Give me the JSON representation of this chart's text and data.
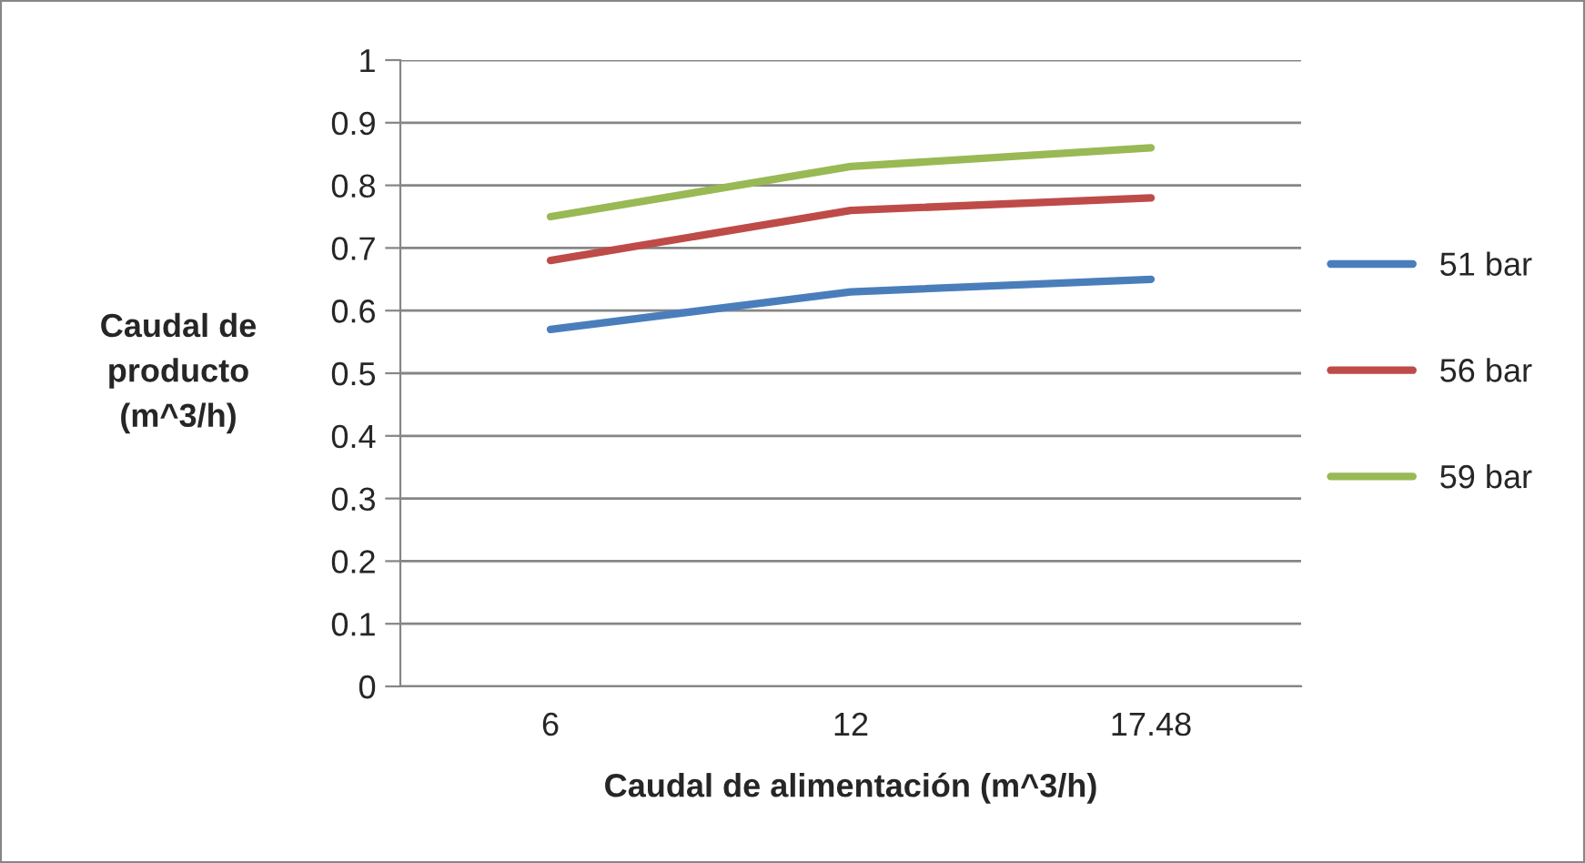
{
  "chart_data": {
    "type": "line",
    "xlabel": "Caudal de alimentación (m^3/h)",
    "ylabel": "Caudal de\nproducto\n(m^3/h)",
    "categories": [
      "6",
      "12",
      "17.48"
    ],
    "series": [
      {
        "name": "51 bar",
        "color": "#4a7ebb",
        "values": [
          0.57,
          0.63,
          0.65
        ]
      },
      {
        "name": "56 bar",
        "color": "#be4b48",
        "values": [
          0.68,
          0.76,
          0.78
        ]
      },
      {
        "name": "59 bar",
        "color": "#98b954",
        "values": [
          0.75,
          0.83,
          0.86
        ]
      }
    ],
    "ylim": [
      0,
      1
    ],
    "yticks": [
      0,
      0.1,
      0.2,
      0.3,
      0.4,
      0.5,
      0.6,
      0.7,
      0.8,
      0.9,
      1
    ],
    "grid": "y",
    "legend": "right",
    "marker": "none",
    "line_style": "solid"
  }
}
